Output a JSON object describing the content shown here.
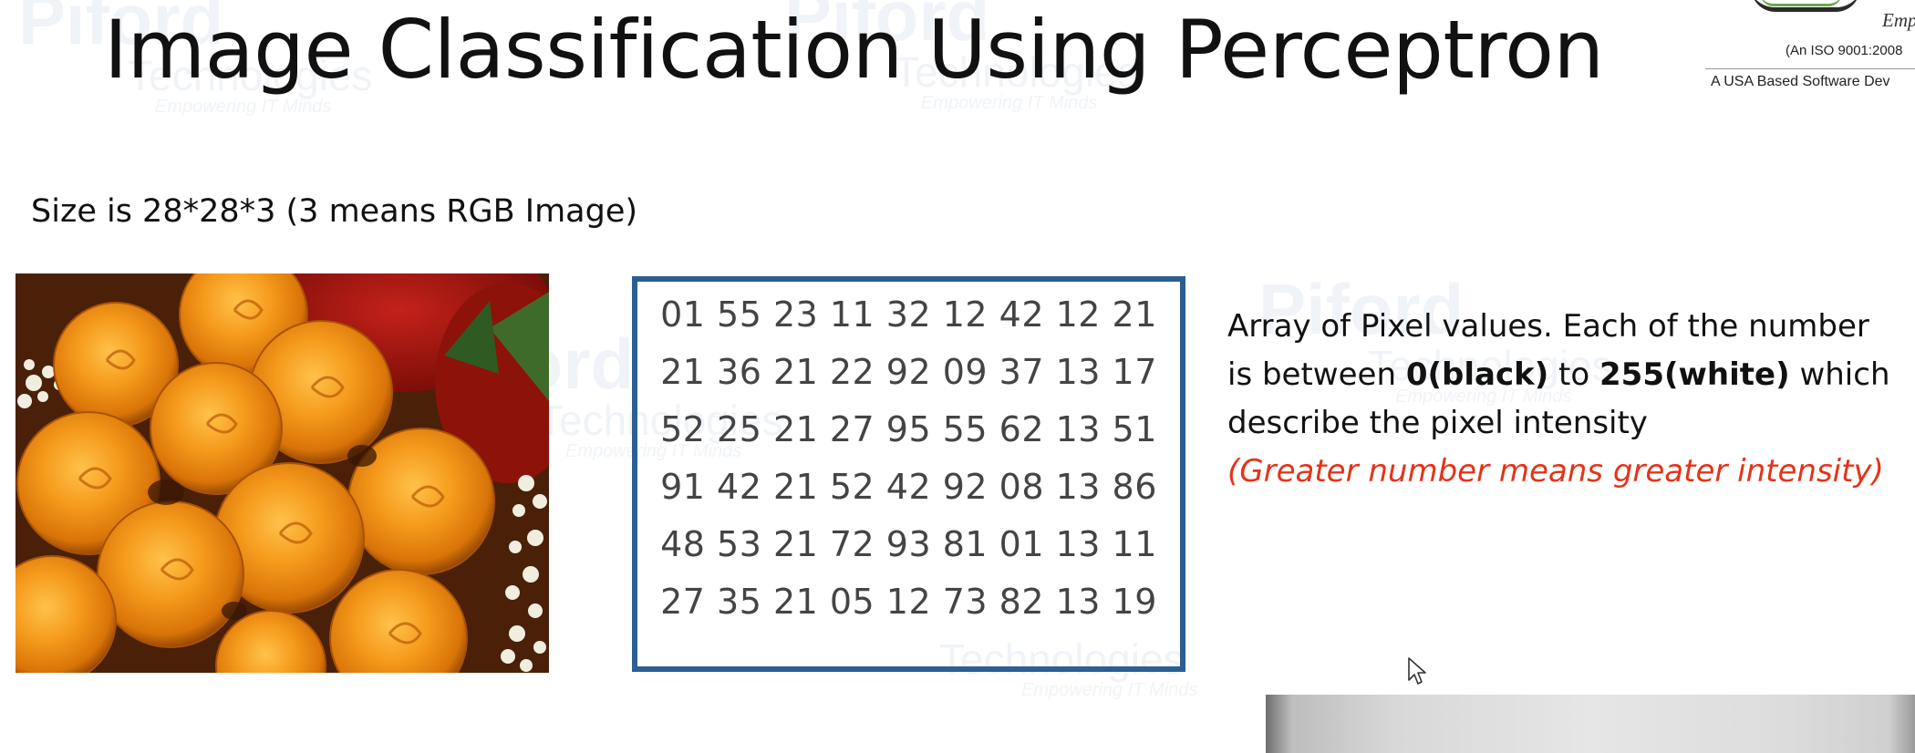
{
  "slide": {
    "title": "Image Classification Using Perceptron",
    "size_text": "Size is 28*28*3 (3 means RGB Image)"
  },
  "logo": {
    "emp_text": "Emp",
    "iso_text": "(An ISO 9001:2008",
    "usa_text": "A USA Based Software Dev"
  },
  "watermark": {
    "main": "Piford",
    "sub": "Technologies",
    "tagline": "Empowering IT Minds"
  },
  "pixel_grid": {
    "rows": [
      "01 55 23 11 32 12 42 12 21",
      "21 36 21 22 92 09 37 13 17",
      "52 25 21 27 95 55 62 13 51",
      "91 42 21 52 42 92 08 13 86",
      "48 53 21 72 93 81 01 13 11",
      "27 35 21 05 12 73 82 13 19"
    ],
    "border_color": "#2b5e93"
  },
  "description": {
    "line1": "Array of Pixel values. Each of the number",
    "line2_pre": "is between ",
    "line2_bold1": "0(black)",
    "line2_mid": " to ",
    "line2_bold2": "255(white)",
    "line2_post": " which",
    "line3": "describe the pixel intensity",
    "line4_red": "(Greater number means greater intensity)",
    "accent_color": "#e53319"
  },
  "photo": {
    "subject": "orange-roses-bouquet"
  }
}
